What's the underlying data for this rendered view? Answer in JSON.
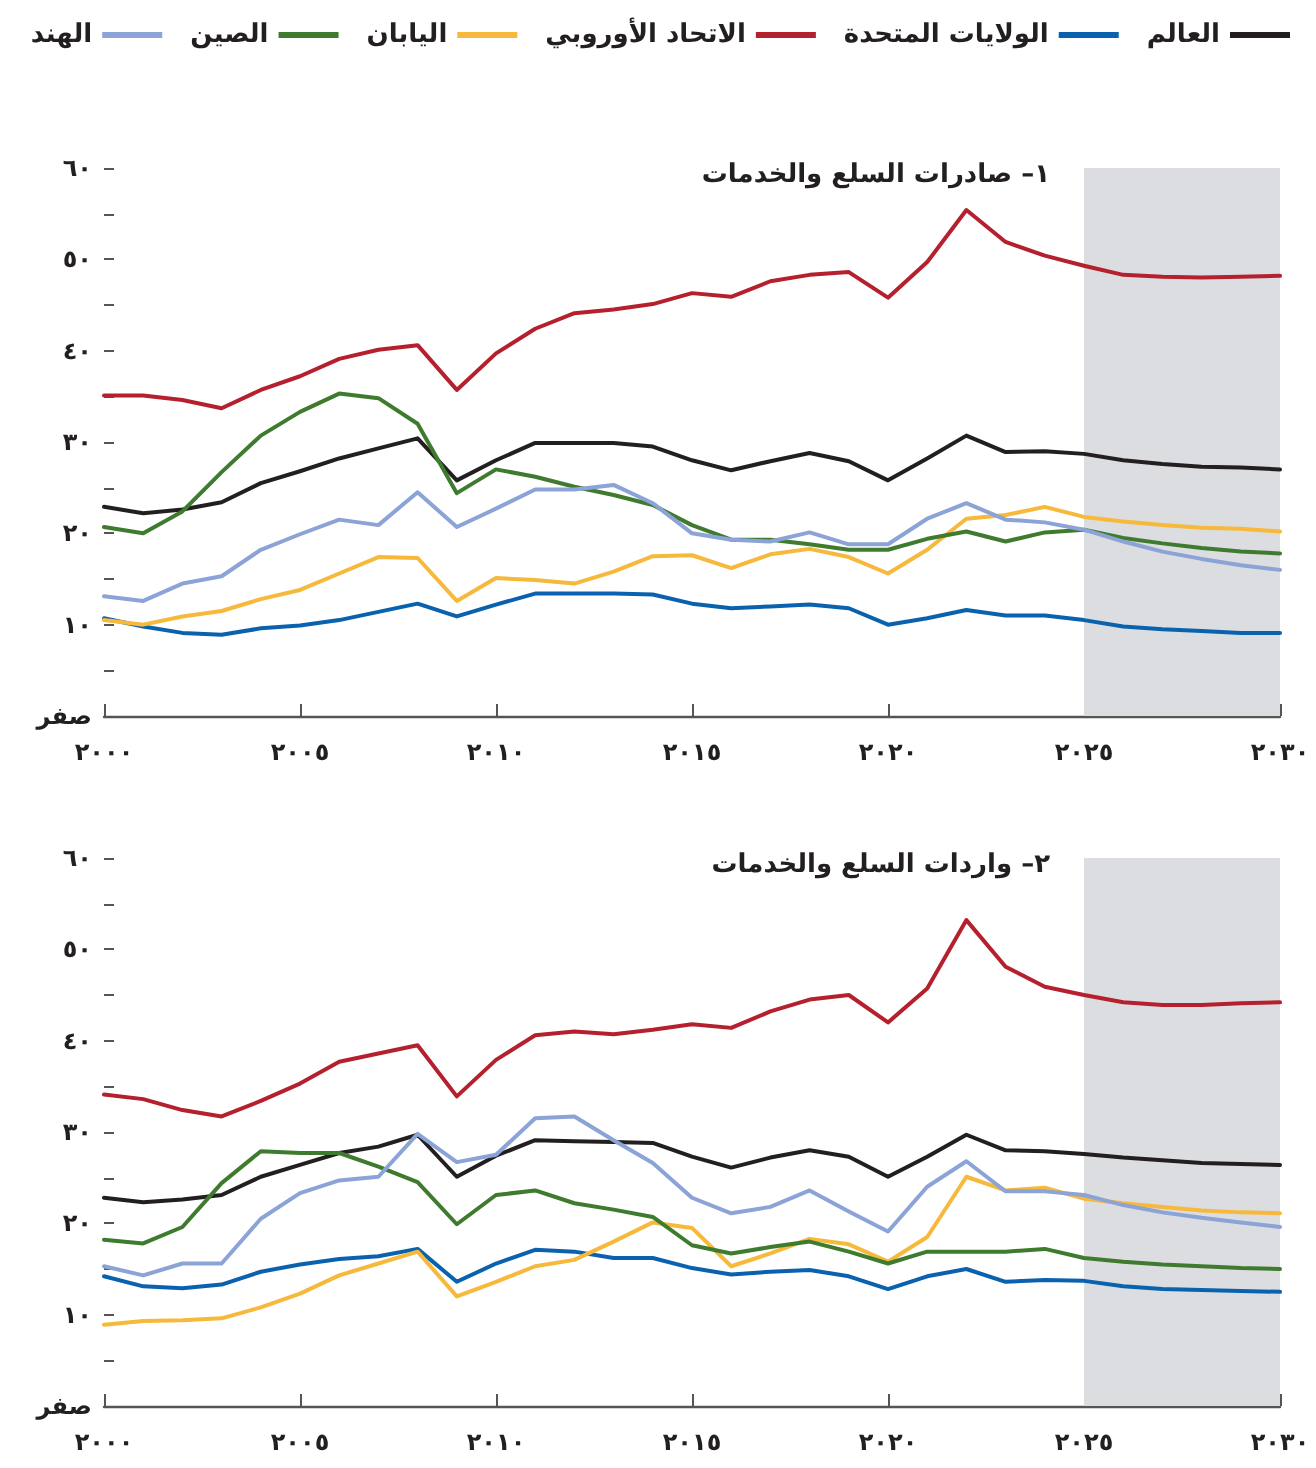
{
  "chart_data": [
    {
      "type": "line",
      "title": "١– صادرات السلع والخدمات",
      "legend": "top right",
      "marker": "none",
      "line_style": "solid",
      "grid": false,
      "x": [
        2000,
        2001,
        2002,
        2003,
        2004,
        2005,
        2006,
        2007,
        2008,
        2009,
        2010,
        2011,
        2012,
        2013,
        2014,
        2015,
        2016,
        2017,
        2018,
        2019,
        2020,
        2021,
        2022,
        2023,
        2024,
        2025,
        2026,
        2027,
        2028,
        2029,
        2030
      ],
      "xlim": [
        2000,
        2030
      ],
      "xticks": [
        {
          "value": 2000,
          "label": "٢٠٠٠"
        },
        {
          "value": 2005,
          "label": "٢٠٠٥"
        },
        {
          "value": 2010,
          "label": "٢٠١٠"
        },
        {
          "value": 2015,
          "label": "٢٠١٥"
        },
        {
          "value": 2020,
          "label": "٢٠٢٠"
        },
        {
          "value": 2025,
          "label": "٢٠٢٥"
        },
        {
          "value": 2030,
          "label": "٢٠٣٠"
        }
      ],
      "ylim": [
        0,
        60
      ],
      "yticks": [
        {
          "value": 0,
          "label": "صفر"
        },
        {
          "value": 5,
          "label": null
        },
        {
          "value": 10,
          "label": "١٠"
        },
        {
          "value": 15,
          "label": null
        },
        {
          "value": 20,
          "label": "٢٠"
        },
        {
          "value": 25,
          "label": null
        },
        {
          "value": 30,
          "label": "٣٠"
        },
        {
          "value": 35,
          "label": null
        },
        {
          "value": 40,
          "label": "٤٠"
        },
        {
          "value": 45,
          "label": null
        },
        {
          "value": 50,
          "label": "٥٠"
        },
        {
          "value": 55,
          "label": null
        },
        {
          "value": 60,
          "label": "٦٠"
        }
      ],
      "bands": [
        {
          "axis": "x",
          "from": 2025,
          "to": 2030,
          "color": "#dcdde0"
        }
      ],
      "series": [
        {
          "name": "العالم",
          "color": "#231f20",
          "values": [
            22.9,
            22.2,
            22.6,
            23.4,
            25.5,
            26.8,
            28.2,
            29.3,
            30.4,
            25.8,
            28.0,
            29.9,
            29.9,
            29.9,
            29.5,
            28.0,
            26.9,
            27.9,
            28.8,
            27.9,
            25.8,
            28.2,
            30.7,
            28.9,
            29.0,
            28.7,
            28.0,
            27.6,
            27.3,
            27.2,
            27.0
          ]
        },
        {
          "name": "الولايات المتحدة",
          "color": "#0a62ae",
          "values": [
            10.7,
            9.8,
            9.1,
            8.9,
            9.6,
            9.9,
            10.5,
            11.4,
            12.3,
            10.9,
            12.2,
            13.4,
            13.4,
            13.4,
            13.3,
            12.3,
            11.8,
            12.0,
            12.2,
            11.8,
            10.0,
            10.7,
            11.6,
            11.0,
            11.0,
            10.5,
            9.8,
            9.5,
            9.3,
            9.1,
            9.1
          ]
        },
        {
          "name": "الاتحاد الأوروبي",
          "color": "#b5202e",
          "values": [
            35.1,
            35.1,
            34.6,
            33.7,
            35.7,
            37.2,
            39.1,
            40.1,
            40.6,
            35.7,
            39.7,
            42.4,
            44.1,
            44.5,
            45.1,
            46.3,
            45.9,
            47.6,
            48.3,
            48.6,
            45.8,
            49.7,
            55.4,
            51.9,
            50.4,
            49.3,
            48.3,
            48.1,
            48.0,
            48.1,
            48.2
          ]
        },
        {
          "name": "اليابان",
          "color": "#f6b93b",
          "values": [
            10.5,
            10.0,
            10.9,
            11.5,
            12.8,
            13.8,
            15.6,
            17.4,
            17.3,
            12.6,
            15.1,
            14.9,
            14.5,
            15.8,
            17.5,
            17.6,
            16.2,
            17.7,
            18.3,
            17.4,
            15.6,
            18.2,
            21.6,
            22.0,
            22.9,
            21.8,
            21.3,
            20.9,
            20.6,
            20.5,
            20.2
          ]
        },
        {
          "name": "الصين",
          "color": "#3e7b2e",
          "values": [
            20.7,
            20.0,
            22.4,
            26.7,
            30.7,
            33.3,
            35.3,
            34.8,
            32.0,
            24.4,
            27.0,
            26.2,
            25.1,
            24.2,
            23.1,
            20.9,
            19.3,
            19.3,
            18.8,
            18.2,
            18.2,
            19.4,
            20.2,
            19.1,
            20.1,
            20.4,
            19.5,
            18.9,
            18.4,
            18.0,
            17.8
          ]
        },
        {
          "name": "الهند",
          "color": "#8ba3d6",
          "values": [
            13.1,
            12.6,
            14.5,
            15.3,
            18.2,
            19.9,
            21.5,
            20.9,
            24.5,
            20.7,
            22.7,
            24.8,
            24.8,
            25.3,
            23.3,
            20.0,
            19.3,
            19.1,
            20.1,
            18.8,
            18.8,
            21.6,
            23.3,
            21.5,
            21.2,
            20.4,
            19.1,
            18.0,
            17.2,
            16.5,
            16.0
          ]
        }
      ]
    },
    {
      "type": "line",
      "title": "٢– واردات السلع والخدمات",
      "marker": "none",
      "line_style": "solid",
      "grid": false,
      "x": [
        2000,
        2001,
        2002,
        2003,
        2004,
        2005,
        2006,
        2007,
        2008,
        2009,
        2010,
        2011,
        2012,
        2013,
        2014,
        2015,
        2016,
        2017,
        2018,
        2019,
        2020,
        2021,
        2022,
        2023,
        2024,
        2025,
        2026,
        2027,
        2028,
        2029,
        2030
      ],
      "xlim": [
        2000,
        2030
      ],
      "xticks": [
        {
          "value": 2000,
          "label": "٢٠٠٠"
        },
        {
          "value": 2005,
          "label": "٢٠٠٥"
        },
        {
          "value": 2010,
          "label": "٢٠١٠"
        },
        {
          "value": 2015,
          "label": "٢٠١٥"
        },
        {
          "value": 2020,
          "label": "٢٠٢٠"
        },
        {
          "value": 2025,
          "label": "٢٠٢٥"
        },
        {
          "value": 2030,
          "label": "٢٠٣٠"
        }
      ],
      "ylim": [
        0,
        60
      ],
      "yticks": [
        {
          "value": 0,
          "label": "صفر"
        },
        {
          "value": 5,
          "label": null
        },
        {
          "value": 10,
          "label": "١٠"
        },
        {
          "value": 15,
          "label": null
        },
        {
          "value": 20,
          "label": "٢٠"
        },
        {
          "value": 25,
          "label": null
        },
        {
          "value": 30,
          "label": "٣٠"
        },
        {
          "value": 35,
          "label": null
        },
        {
          "value": 40,
          "label": "٤٠"
        },
        {
          "value": 45,
          "label": null
        },
        {
          "value": 50,
          "label": "٥٠"
        },
        {
          "value": 55,
          "label": null
        },
        {
          "value": 60,
          "label": "٦٠"
        }
      ],
      "bands": [
        {
          "axis": "x",
          "from": 2025,
          "to": 2030,
          "color": "#dcdde0"
        }
      ],
      "series": [
        {
          "color": "#231f20",
          "values": [
            22.8,
            22.3,
            22.6,
            23.1,
            25.1,
            26.4,
            27.7,
            28.4,
            29.7,
            25.1,
            27.4,
            29.1,
            29.0,
            28.9,
            28.8,
            27.3,
            26.1,
            27.2,
            28.0,
            27.3,
            25.1,
            27.3,
            29.7,
            28.0,
            27.9,
            27.6,
            27.2,
            26.9,
            26.6,
            26.5,
            26.4
          ]
        },
        {
          "color": "#0a62ae",
          "values": [
            14.2,
            13.1,
            12.9,
            13.3,
            14.7,
            15.5,
            16.1,
            16.4,
            17.2,
            13.6,
            15.6,
            17.1,
            16.9,
            16.2,
            16.2,
            15.1,
            14.4,
            14.7,
            14.9,
            14.2,
            12.8,
            14.2,
            15.0,
            13.6,
            13.8,
            13.7,
            13.1,
            12.8,
            12.7,
            12.6,
            12.5
          ]
        },
        {
          "color": "#b5202e",
          "values": [
            34.1,
            33.6,
            32.4,
            31.7,
            33.4,
            35.3,
            37.7,
            38.6,
            39.5,
            33.9,
            37.9,
            40.6,
            41.0,
            40.7,
            41.2,
            41.8,
            41.4,
            43.2,
            44.5,
            45.0,
            42.0,
            45.7,
            53.2,
            48.1,
            45.9,
            45.0,
            44.2,
            43.9,
            43.9,
            44.1,
            44.2
          ]
        },
        {
          "color": "#f6b93b",
          "values": [
            8.9,
            9.3,
            9.4,
            9.6,
            10.8,
            12.3,
            14.3,
            15.6,
            16.9,
            12.0,
            13.6,
            15.3,
            16.0,
            18.0,
            20.1,
            19.5,
            15.3,
            16.7,
            18.3,
            17.7,
            15.8,
            18.5,
            25.1,
            23.6,
            23.9,
            22.7,
            22.2,
            21.8,
            21.4,
            21.2,
            21.1
          ]
        },
        {
          "color": "#3e7b2e",
          "values": [
            18.2,
            17.8,
            19.6,
            24.4,
            27.9,
            27.7,
            27.7,
            26.2,
            24.5,
            19.9,
            23.1,
            23.6,
            22.2,
            21.5,
            20.7,
            17.6,
            16.7,
            17.4,
            18.0,
            16.9,
            15.6,
            16.9,
            16.9,
            16.9,
            17.2,
            16.2,
            15.8,
            15.5,
            15.3,
            15.1,
            15.0
          ]
        },
        {
          "color": "#8ba3d6",
          "values": [
            15.3,
            14.3,
            15.6,
            15.6,
            20.5,
            23.3,
            24.7,
            25.1,
            29.8,
            26.7,
            27.5,
            31.5,
            31.7,
            29.1,
            26.6,
            22.8,
            21.1,
            21.8,
            23.6,
            21.3,
            19.1,
            24.0,
            26.8,
            23.5,
            23.5,
            23.1,
            22.0,
            21.2,
            20.6,
            20.1,
            19.6
          ]
        }
      ]
    }
  ]
}
